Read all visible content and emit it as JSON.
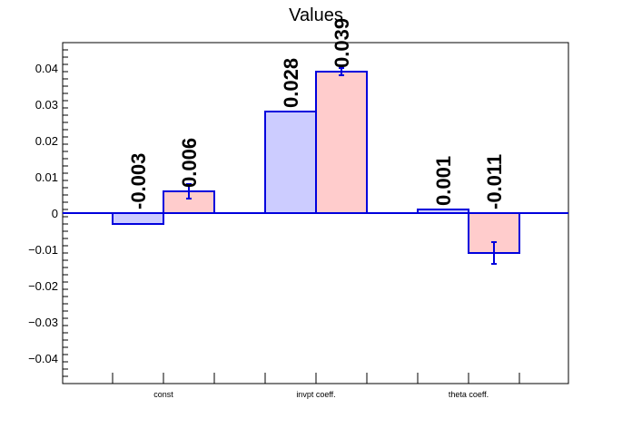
{
  "chart_data": {
    "type": "bar",
    "title": "Values",
    "categories": [
      "const",
      "invpt coeff.",
      "theta coeff."
    ],
    "ylim": [
      -0.047,
      0.047
    ],
    "yticks": [
      -0.04,
      -0.03,
      -0.02,
      -0.01,
      0,
      0.01,
      0.02,
      0.03,
      0.04
    ],
    "ytick_labels": [
      "−0.04",
      "−0.03",
      "−0.02",
      "−0.01",
      "0",
      "0.01",
      "0.02",
      "0.03",
      "0.04"
    ],
    "grid": false,
    "legend": "none",
    "series": [
      {
        "values": [
          -0.003,
          0.028,
          0.001
        ],
        "labels": [
          "-0.003",
          "0.028",
          "0.001"
        ],
        "errors": [
          null,
          null,
          null
        ],
        "fill": "#ccccff",
        "stroke": "#0000dd"
      },
      {
        "values": [
          0.006,
          0.039,
          -0.011
        ],
        "labels": [
          "0.006",
          "0.039",
          "-0.011"
        ],
        "errors": [
          0.002,
          0.001,
          0.003
        ],
        "fill": "#ffcccc",
        "stroke": "#0000dd"
      }
    ]
  }
}
